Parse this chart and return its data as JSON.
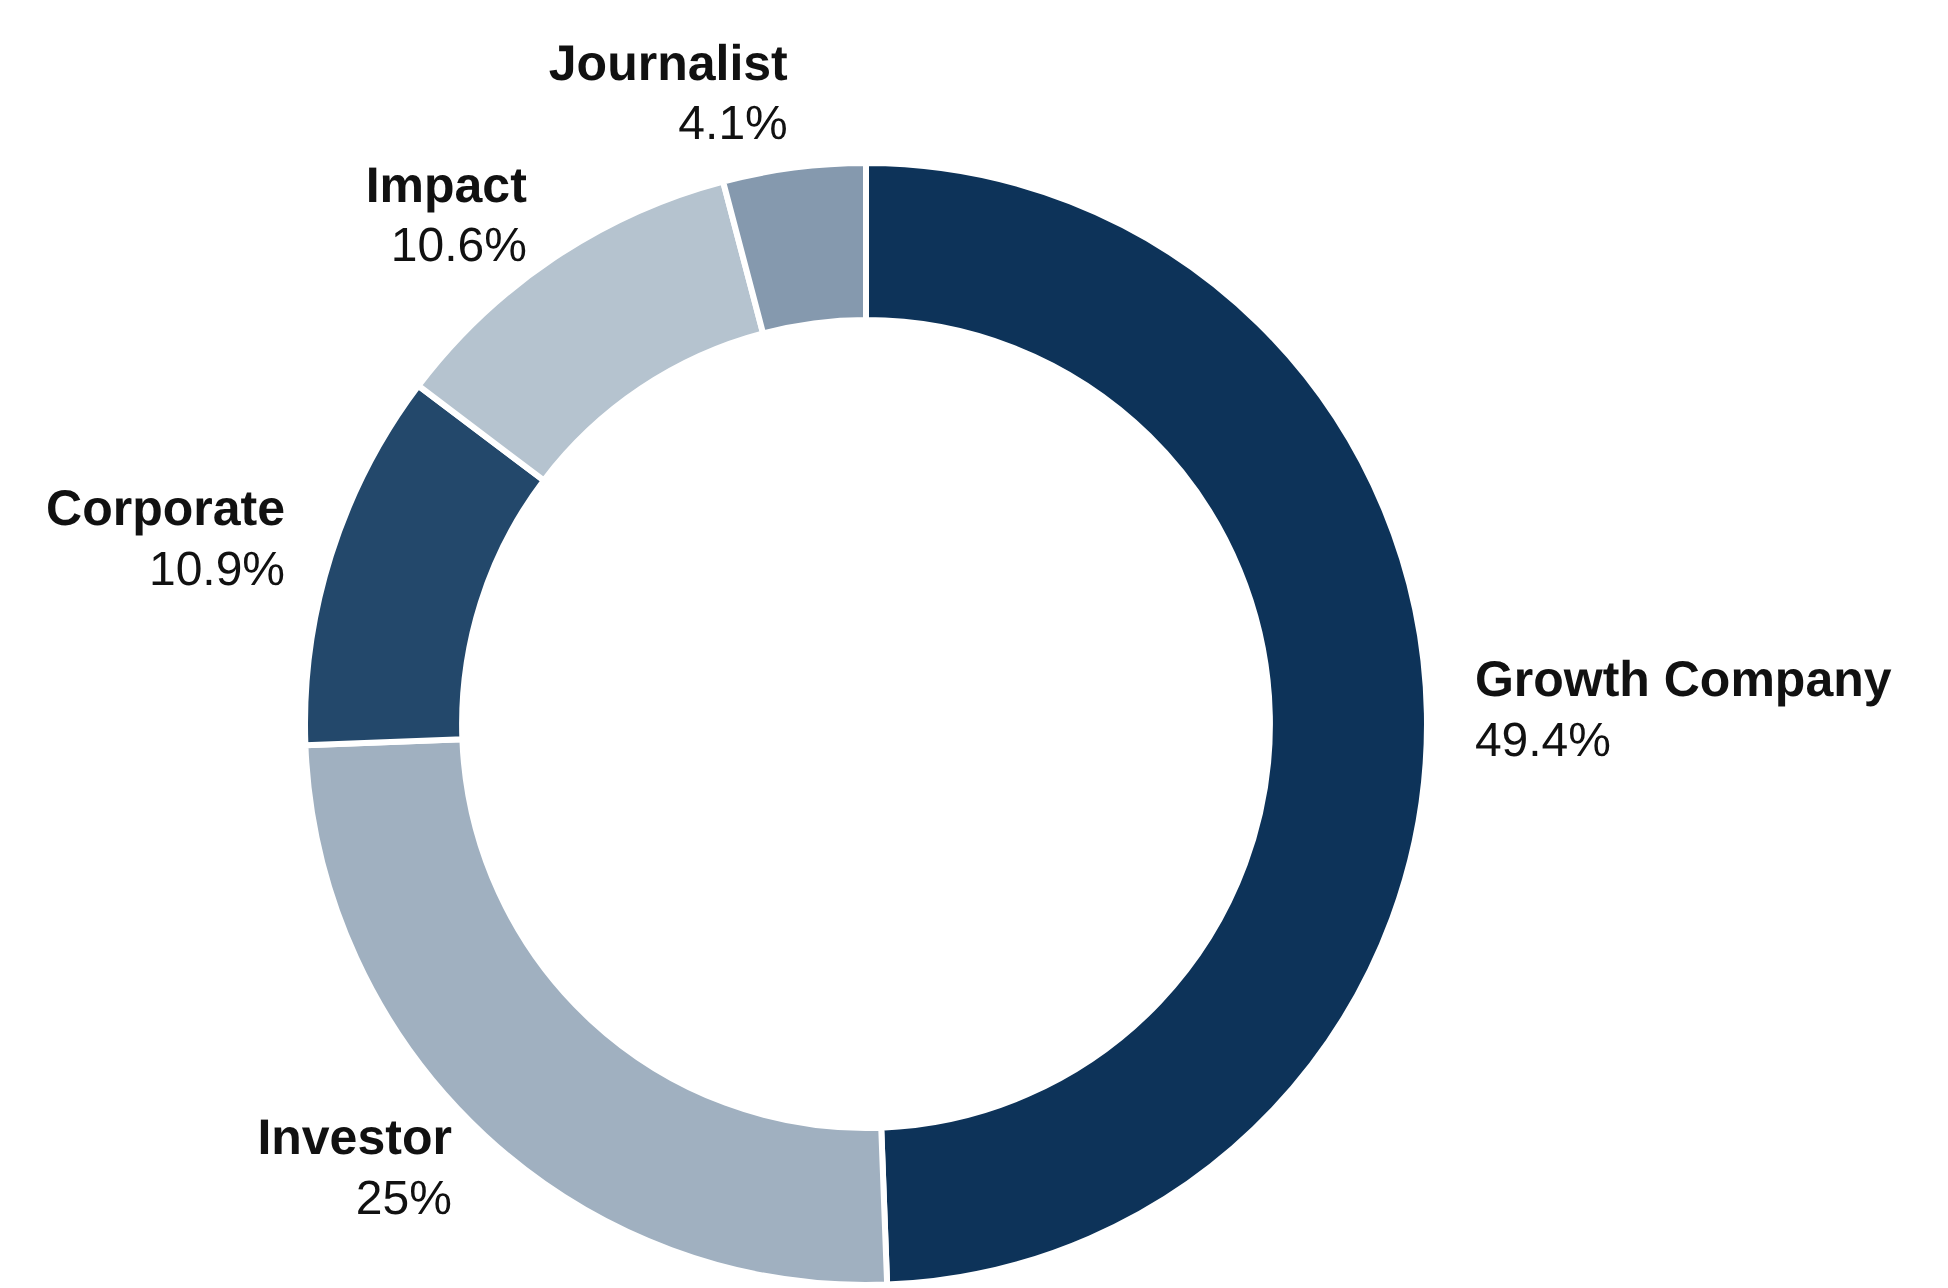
{
  "chart_data": {
    "type": "donut",
    "categories": [
      "Growth Company",
      "Investor",
      "Corporate",
      "Impact",
      "Journalist"
    ],
    "values": [
      49.4,
      25,
      10.9,
      10.6,
      4.1
    ],
    "colors": [
      "#0d3359",
      "#a0b0c0",
      "#23486b",
      "#b5c3cf",
      "#8599ae"
    ],
    "value_labels": [
      "49.4%",
      "25%",
      "10.9%",
      "10.6%",
      "4.1%"
    ],
    "legend": false
  }
}
